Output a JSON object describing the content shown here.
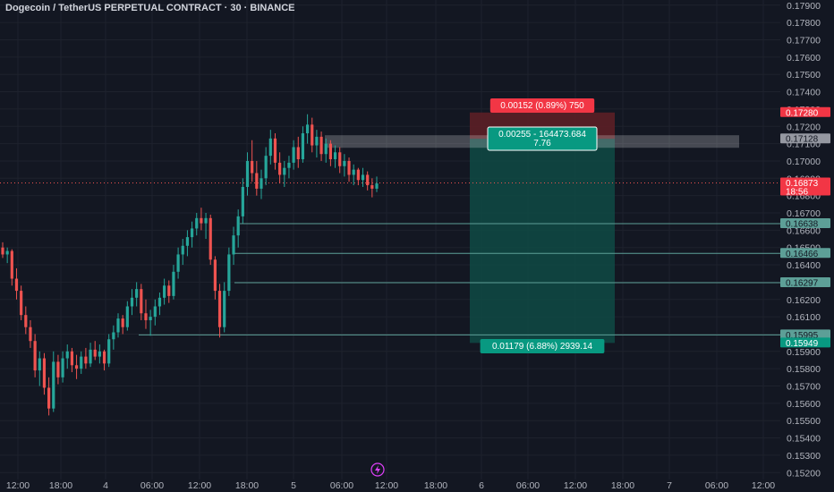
{
  "title": "Dogecoin / TetherUS PERPETUAL CONTRACT · 30 · BINANCE",
  "colors": {
    "background": "#131722",
    "grid": "#1e222d",
    "up": "#26a69a",
    "down": "#ef5350",
    "axis_text": "#b2b5be",
    "profit_zone": "#0f4a44",
    "loss_zone": "#5c1f26",
    "profit_label": "#089981",
    "loss_label": "#f23645"
  },
  "chart_data": {
    "type": "candlestick",
    "y_ticks": [
      "0.15200",
      "0.15300",
      "0.15400",
      "0.15500",
      "0.15600",
      "0.15700",
      "0.15800",
      "0.15900",
      "0.16000",
      "0.16100",
      "0.16200",
      "0.16300",
      "0.16400",
      "0.16500",
      "0.16600",
      "0.16700",
      "0.16800",
      "0.16900",
      "0.17000",
      "0.17100",
      "0.17200",
      "0.17300",
      "0.17400",
      "0.17500",
      "0.17600",
      "0.17700",
      "0.17800",
      "0.17900"
    ],
    "ylim": [
      0.1516,
      0.1793
    ],
    "x_ticks": [
      "12:00",
      "18:00",
      "4",
      "06:00",
      "12:00",
      "18:00",
      "5",
      "06:00",
      "12:00",
      "18:00",
      "6",
      "06:00",
      "12:00",
      "18:00",
      "7",
      "06:00",
      "12:00"
    ],
    "candles": [
      [
        0.165,
        0.1653,
        0.1644,
        0.1646
      ],
      [
        0.1646,
        0.165,
        0.1641,
        0.1648
      ],
      [
        0.1648,
        0.1649,
        0.1628,
        0.1632
      ],
      [
        0.1632,
        0.1638,
        0.162,
        0.1625
      ],
      [
        0.1625,
        0.1628,
        0.1608,
        0.1611
      ],
      [
        0.1611,
        0.1616,
        0.16,
        0.1604
      ],
      [
        0.1604,
        0.1608,
        0.1592,
        0.1596
      ],
      [
        0.1596,
        0.16,
        0.1575,
        0.1579
      ],
      [
        0.1579,
        0.159,
        0.157,
        0.1586
      ],
      [
        0.1586,
        0.1589,
        0.1565,
        0.1569
      ],
      [
        0.1569,
        0.1575,
        0.1553,
        0.1557
      ],
      [
        0.1557,
        0.159,
        0.1555,
        0.1584
      ],
      [
        0.1584,
        0.1588,
        0.1571,
        0.1575
      ],
      [
        0.1575,
        0.159,
        0.1572,
        0.1586
      ],
      [
        0.1586,
        0.1594,
        0.158,
        0.159
      ],
      [
        0.159,
        0.1592,
        0.1578,
        0.1582
      ],
      [
        0.1582,
        0.1588,
        0.1574,
        0.158
      ],
      [
        0.158,
        0.159,
        0.1577,
        0.1587
      ],
      [
        0.1587,
        0.1592,
        0.158,
        0.1583
      ],
      [
        0.1583,
        0.1595,
        0.1581,
        0.1591
      ],
      [
        0.1591,
        0.1596,
        0.1585,
        0.1587
      ],
      [
        0.1587,
        0.1594,
        0.1583,
        0.159
      ],
      [
        0.159,
        0.1591,
        0.1579,
        0.1583
      ],
      [
        0.1583,
        0.16,
        0.1581,
        0.1597
      ],
      [
        0.1597,
        0.1605,
        0.1591,
        0.1601
      ],
      [
        0.1601,
        0.1612,
        0.1598,
        0.1609
      ],
      [
        0.1609,
        0.1611,
        0.16,
        0.1604
      ],
      [
        0.1604,
        0.1619,
        0.1602,
        0.1616
      ],
      [
        0.1616,
        0.1626,
        0.1611,
        0.1621
      ],
      [
        0.1621,
        0.163,
        0.1616,
        0.1626
      ],
      [
        0.1626,
        0.1629,
        0.1608,
        0.1612
      ],
      [
        0.1612,
        0.162,
        0.1603,
        0.1608
      ],
      [
        0.1608,
        0.1614,
        0.1599,
        0.161
      ],
      [
        0.161,
        0.162,
        0.1605,
        0.1616
      ],
      [
        0.1616,
        0.1624,
        0.1611,
        0.1621
      ],
      [
        0.1621,
        0.1632,
        0.1617,
        0.1628
      ],
      [
        0.1628,
        0.1631,
        0.1618,
        0.1622
      ],
      [
        0.1622,
        0.164,
        0.162,
        0.1636
      ],
      [
        0.1636,
        0.165,
        0.1632,
        0.1646
      ],
      [
        0.1646,
        0.1655,
        0.164,
        0.1651
      ],
      [
        0.1651,
        0.166,
        0.1645,
        0.1656
      ],
      [
        0.1656,
        0.1665,
        0.165,
        0.1661
      ],
      [
        0.1661,
        0.167,
        0.1657,
        0.1667
      ],
      [
        0.1667,
        0.1673,
        0.166,
        0.1664
      ],
      [
        0.1664,
        0.167,
        0.1655,
        0.1667
      ],
      [
        0.1667,
        0.1669,
        0.164,
        0.1643
      ],
      [
        0.1643,
        0.1645,
        0.162,
        0.1625
      ],
      [
        0.1625,
        0.1629,
        0.1598,
        0.1604
      ],
      [
        0.1604,
        0.163,
        0.1601,
        0.1625
      ],
      [
        0.1625,
        0.165,
        0.1622,
        0.1646
      ],
      [
        0.1646,
        0.1662,
        0.164,
        0.1657
      ],
      [
        0.1657,
        0.1672,
        0.165,
        0.1668
      ],
      [
        0.1668,
        0.169,
        0.1664,
        0.1685
      ],
      [
        0.1685,
        0.1705,
        0.168,
        0.17
      ],
      [
        0.17,
        0.1712,
        0.1688,
        0.1693
      ],
      [
        0.1693,
        0.17,
        0.168,
        0.1684
      ],
      [
        0.1684,
        0.1695,
        0.1678,
        0.169
      ],
      [
        0.169,
        0.1708,
        0.1686,
        0.1703
      ],
      [
        0.1703,
        0.1718,
        0.1698,
        0.1713
      ],
      [
        0.1713,
        0.1716,
        0.1695,
        0.1699
      ],
      [
        0.1699,
        0.1705,
        0.1687,
        0.1692
      ],
      [
        0.1692,
        0.17,
        0.1685,
        0.1696
      ],
      [
        0.1696,
        0.1703,
        0.169,
        0.1699
      ],
      [
        0.1699,
        0.1712,
        0.1695,
        0.1708
      ],
      [
        0.1708,
        0.1714,
        0.1696,
        0.1701
      ],
      [
        0.1701,
        0.172,
        0.1699,
        0.1716
      ],
      [
        0.1716,
        0.1727,
        0.171,
        0.1721
      ],
      [
        0.1721,
        0.1725,
        0.1705,
        0.1709
      ],
      [
        0.1709,
        0.1718,
        0.1702,
        0.1714
      ],
      [
        0.1714,
        0.1717,
        0.17,
        0.1704
      ],
      [
        0.1704,
        0.1713,
        0.1699,
        0.171
      ],
      [
        0.171,
        0.1712,
        0.1697,
        0.1701
      ],
      [
        0.1701,
        0.1709,
        0.1696,
        0.1705
      ],
      [
        0.1705,
        0.1708,
        0.1693,
        0.1697
      ],
      [
        0.1697,
        0.1704,
        0.1691,
        0.17
      ],
      [
        0.17,
        0.1702,
        0.1688,
        0.1692
      ],
      [
        0.1692,
        0.1698,
        0.1686,
        0.1695
      ],
      [
        0.1695,
        0.1696,
        0.1686,
        0.1689
      ],
      [
        0.1689,
        0.1696,
        0.1685,
        0.1692
      ],
      [
        0.1692,
        0.1694,
        0.1683,
        0.1686
      ],
      [
        0.1686,
        0.169,
        0.1679,
        0.1684
      ],
      [
        0.1684,
        0.1691,
        0.1682,
        0.1687
      ]
    ],
    "horizontal_lines": [
      0.16638,
      0.16466,
      0.16297,
      0.15995
    ],
    "current_price": 0.16873,
    "position": {
      "entry": 0.17128,
      "take_profit": 0.15949,
      "stop_loss": 0.1728,
      "zone_label": "0.00255 - 164473.684\n7.76",
      "zone_label_lines": [
        "0.00255 - 164473.684",
        "7.76"
      ],
      "stop_label": "0.00152 (0.89%) 750",
      "target_label": "0.01179 (6.88%) 2939.14"
    },
    "price_tags": [
      {
        "value": "0.17280",
        "color": "#f23645",
        "text_color": "#ffffff"
      },
      {
        "value": "0.17128",
        "color": "#9598a1",
        "text_color": "#131722"
      },
      {
        "value": "0.16873",
        "sub": "18:56",
        "color": "#f23645",
        "text_color": "#ffffff"
      },
      {
        "value": "0.16638",
        "color": "#5d9f97",
        "text_color": "#131722"
      },
      {
        "value": "0.16466",
        "color": "#5d9f97",
        "text_color": "#131722"
      },
      {
        "value": "0.16297",
        "color": "#5d9f97",
        "text_color": "#131722"
      },
      {
        "value": "0.15995",
        "color": "#5d9f97",
        "text_color": "#131722"
      },
      {
        "value": "0.15949",
        "color": "#089981",
        "text_color": "#ffffff"
      }
    ]
  }
}
